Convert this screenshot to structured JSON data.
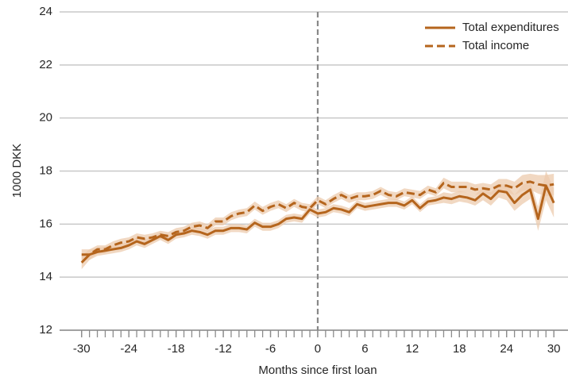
{
  "chart_data": {
    "type": "line",
    "x_label": "Months since first loan",
    "y_label": "1000 DKK",
    "x": [
      -30,
      -29,
      -28,
      -27,
      -26,
      -25,
      -24,
      -23,
      -22,
      -21,
      -20,
      -19,
      -18,
      -17,
      -16,
      -15,
      -14,
      -13,
      -12,
      -11,
      -10,
      -9,
      -8,
      -7,
      -6,
      -5,
      -4,
      -3,
      -2,
      -1,
      0,
      1,
      2,
      3,
      4,
      5,
      6,
      7,
      8,
      9,
      10,
      11,
      12,
      13,
      14,
      15,
      16,
      17,
      18,
      19,
      20,
      21,
      22,
      23,
      24,
      25,
      26,
      27,
      28,
      29,
      30
    ],
    "series": [
      {
        "name": "Total expenditures",
        "color": "#b5651d",
        "dashed": false,
        "values": [
          14.55,
          14.85,
          14.95,
          15.0,
          15.05,
          15.1,
          15.2,
          15.35,
          15.25,
          15.4,
          15.55,
          15.4,
          15.6,
          15.65,
          15.75,
          15.7,
          15.6,
          15.75,
          15.75,
          15.85,
          15.85,
          15.8,
          16.05,
          15.9,
          15.9,
          16.0,
          16.2,
          16.25,
          16.2,
          16.55,
          16.4,
          16.45,
          16.6,
          16.55,
          16.45,
          16.75,
          16.65,
          16.7,
          16.75,
          16.8,
          16.8,
          16.7,
          16.9,
          16.6,
          16.85,
          16.9,
          17.0,
          16.95,
          17.05,
          17.0,
          16.9,
          17.15,
          16.95,
          17.25,
          17.2,
          16.8,
          17.1,
          17.3,
          16.2,
          17.45,
          16.8
        ],
        "error": [
          0.25,
          0.2,
          0.15,
          0.15,
          0.15,
          0.15,
          0.15,
          0.15,
          0.15,
          0.15,
          0.15,
          0.15,
          0.15,
          0.15,
          0.15,
          0.15,
          0.15,
          0.15,
          0.15,
          0.15,
          0.15,
          0.15,
          0.15,
          0.15,
          0.15,
          0.15,
          0.15,
          0.15,
          0.15,
          0.15,
          0.15,
          0.15,
          0.15,
          0.15,
          0.15,
          0.15,
          0.15,
          0.15,
          0.15,
          0.15,
          0.15,
          0.15,
          0.15,
          0.15,
          0.15,
          0.15,
          0.2,
          0.2,
          0.2,
          0.2,
          0.2,
          0.25,
          0.25,
          0.25,
          0.3,
          0.3,
          0.35,
          0.35,
          0.45,
          0.55,
          0.55
        ]
      },
      {
        "name": "Total income",
        "color": "#b5651d",
        "dashed": true,
        "values": [
          14.85,
          14.85,
          15.05,
          15.05,
          15.2,
          15.3,
          15.35,
          15.5,
          15.45,
          15.5,
          15.6,
          15.55,
          15.7,
          15.75,
          15.9,
          15.95,
          15.85,
          16.1,
          16.1,
          16.3,
          16.4,
          16.45,
          16.7,
          16.5,
          16.65,
          16.75,
          16.6,
          16.8,
          16.65,
          16.6,
          16.9,
          16.75,
          16.95,
          17.1,
          16.95,
          17.05,
          17.05,
          17.1,
          17.25,
          17.1,
          17.05,
          17.2,
          17.15,
          17.1,
          17.3,
          17.2,
          17.55,
          17.4,
          17.4,
          17.4,
          17.3,
          17.35,
          17.3,
          17.45,
          17.45,
          17.35,
          17.55,
          17.6,
          17.5,
          17.45,
          17.5
        ],
        "error": [
          0.2,
          0.2,
          0.15,
          0.15,
          0.15,
          0.15,
          0.15,
          0.15,
          0.15,
          0.15,
          0.15,
          0.15,
          0.15,
          0.15,
          0.15,
          0.15,
          0.15,
          0.15,
          0.15,
          0.15,
          0.15,
          0.15,
          0.15,
          0.15,
          0.15,
          0.15,
          0.15,
          0.15,
          0.15,
          0.15,
          0.15,
          0.15,
          0.15,
          0.15,
          0.15,
          0.15,
          0.15,
          0.15,
          0.15,
          0.15,
          0.15,
          0.15,
          0.15,
          0.15,
          0.15,
          0.15,
          0.2,
          0.2,
          0.2,
          0.2,
          0.2,
          0.2,
          0.2,
          0.25,
          0.25,
          0.25,
          0.3,
          0.3,
          0.35,
          0.4,
          0.4
        ]
      }
    ],
    "band_color": "#eccbae",
    "xlim": [
      -32.8,
      31.8
    ],
    "ylim": [
      12,
      24
    ],
    "xticks": [
      -30,
      -24,
      -18,
      -12,
      -6,
      0,
      6,
      12,
      18,
      24,
      30
    ],
    "xminorticks": [
      -30,
      -29,
      -28,
      -27,
      -26,
      -25,
      -24,
      -23,
      -22,
      -21,
      -20,
      -19,
      -18,
      -17,
      -16,
      -15,
      -14,
      -13,
      -12,
      -11,
      -10,
      -9,
      -8,
      -7,
      -6,
      -5,
      -4,
      -3,
      -2,
      -1,
      0,
      1,
      2,
      3,
      4,
      5,
      6,
      7,
      8,
      9,
      10,
      11,
      12,
      13,
      14,
      15,
      16,
      17,
      18,
      19,
      20,
      21,
      22,
      23,
      24,
      25,
      26,
      27,
      28,
      29,
      30
    ],
    "yticks": [
      12,
      14,
      16,
      18,
      20,
      22,
      24
    ],
    "vline": 0,
    "grid": true,
    "legend": "upper right"
  }
}
